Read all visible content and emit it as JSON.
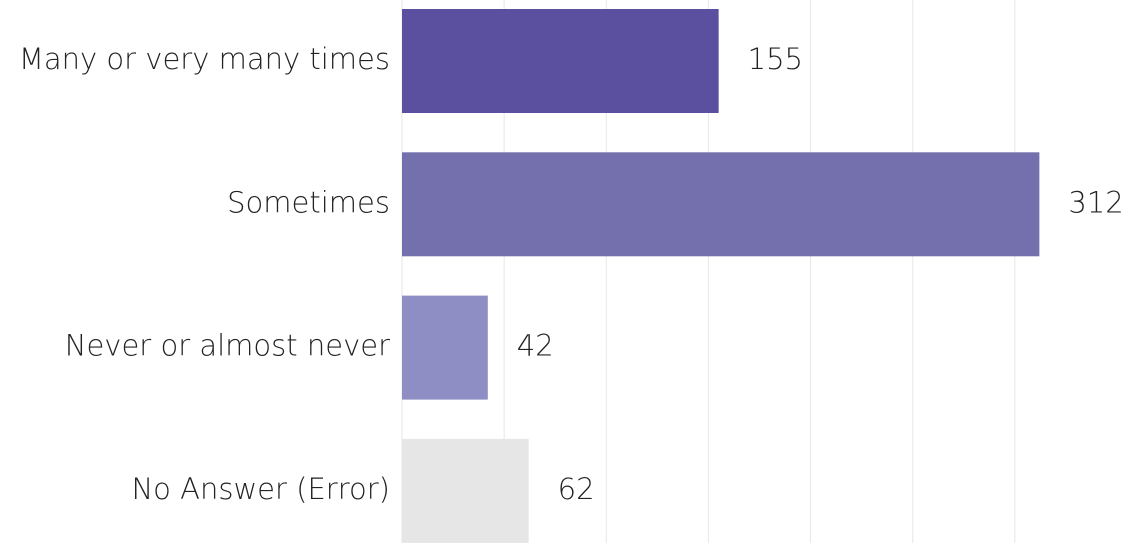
{
  "chart_data": {
    "type": "hbar",
    "categories": [
      "Many or very many times",
      "Sometimes",
      "Never or almost never",
      "No Answer (Error)"
    ],
    "values": [
      155,
      312,
      42,
      62
    ],
    "colors": [
      "#5b4fa0",
      "#7470ad",
      "#8f8ec4",
      "#e6e6e6"
    ],
    "xlim": [
      0,
      350
    ],
    "xticks": [
      0,
      50,
      100,
      150,
      200,
      250,
      300
    ],
    "grid": true
  }
}
